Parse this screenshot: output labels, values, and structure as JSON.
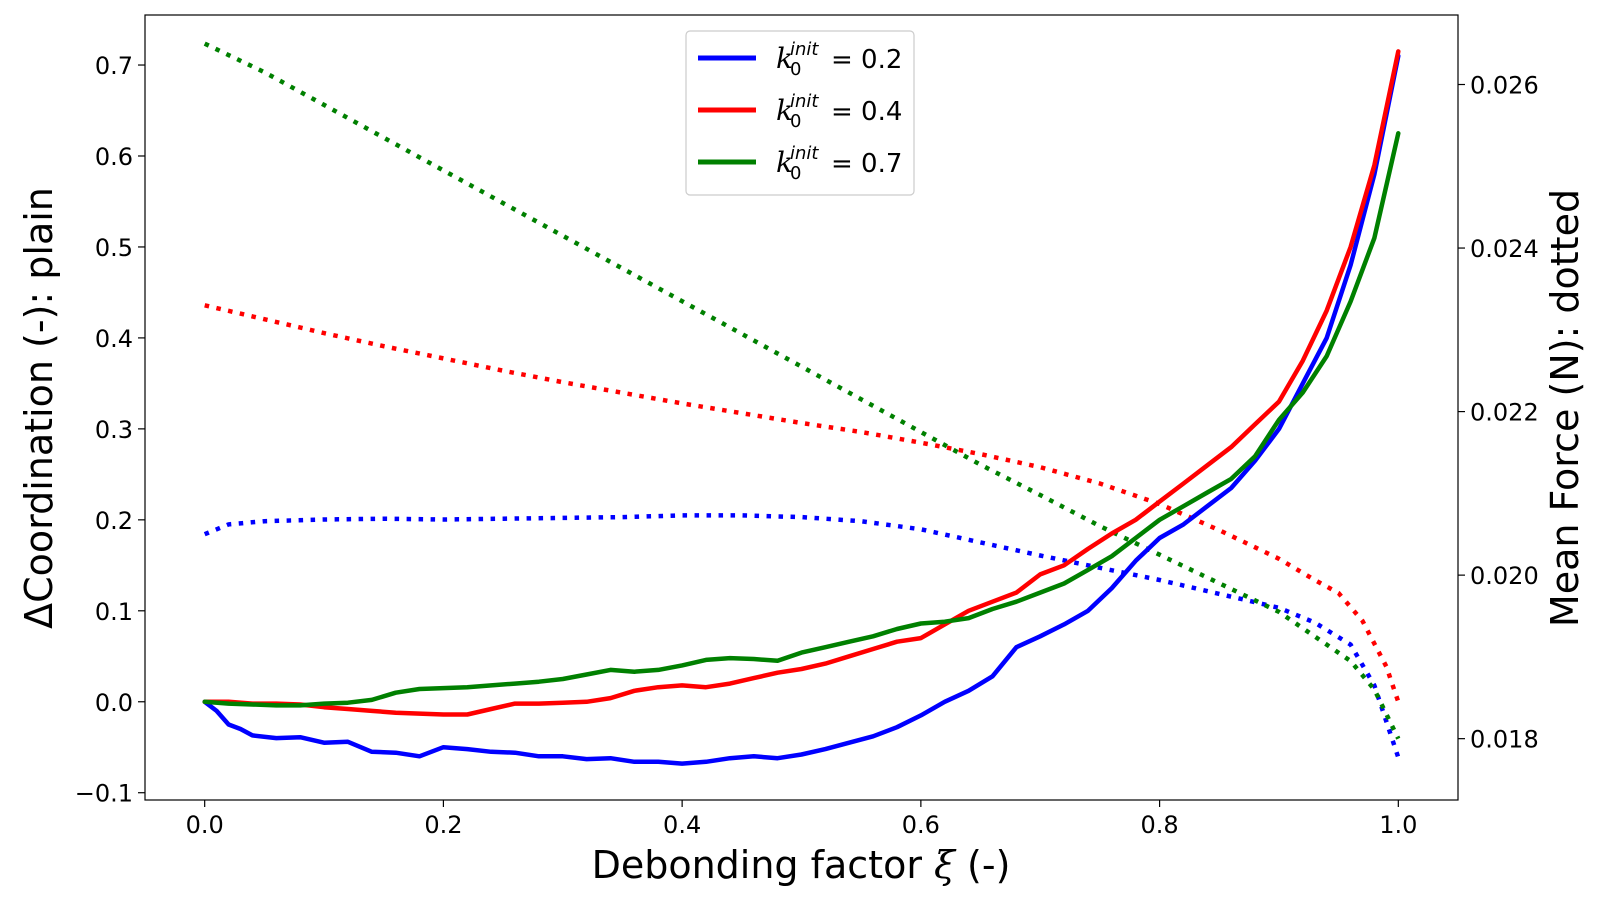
{
  "chart_data": {
    "type": "line",
    "xlabel_prefix": "Debonding factor ",
    "xlabel_symbol": "ξ",
    "xlabel_suffix": " (-)",
    "ylabel_prefix": "Δ",
    "ylabel": "Coordination (-): plain",
    "y2label": "Mean Force (N): dotted",
    "xlim": [
      -0.05,
      1.05
    ],
    "ylim": [
      -0.108,
      0.755
    ],
    "y2lim": [
      0.01725,
      0.02685
    ],
    "x_ticks": [
      "0.0",
      "0.2",
      "0.4",
      "0.6",
      "0.8",
      "1.0"
    ],
    "x_tick_values": [
      0.0,
      0.2,
      0.4,
      0.6,
      0.8,
      1.0
    ],
    "y_ticks": [
      "−0.1",
      "0.0",
      "0.1",
      "0.2",
      "0.3",
      "0.4",
      "0.5",
      "0.6",
      "0.7"
    ],
    "y_tick_values": [
      -0.1,
      0.0,
      0.1,
      0.2,
      0.3,
      0.4,
      0.5,
      0.6,
      0.7
    ],
    "y2_ticks": [
      "0.018",
      "0.020",
      "0.022",
      "0.024",
      "0.026"
    ],
    "y2_tick_values": [
      0.018,
      0.02,
      0.022,
      0.024,
      0.026
    ],
    "legend_position": "upper-center",
    "series": [
      {
        "name": "k0init=0.2",
        "legend_k": "k",
        "legend_sub": "0",
        "legend_sup": "init",
        "legend_value": "= 0.2",
        "color": "#0000ff",
        "coordination": {
          "x": [
            0.0,
            0.01,
            0.02,
            0.03,
            0.04,
            0.06,
            0.08,
            0.1,
            0.12,
            0.14,
            0.16,
            0.18,
            0.2,
            0.22,
            0.24,
            0.26,
            0.28,
            0.3,
            0.32,
            0.34,
            0.36,
            0.38,
            0.4,
            0.42,
            0.44,
            0.46,
            0.48,
            0.5,
            0.52,
            0.54,
            0.56,
            0.58,
            0.6,
            0.62,
            0.64,
            0.66,
            0.68,
            0.7,
            0.72,
            0.74,
            0.76,
            0.78,
            0.8,
            0.82,
            0.84,
            0.86,
            0.88,
            0.9,
            0.92,
            0.94,
            0.96,
            0.98,
            1.0
          ],
          "y": [
            0.0,
            -0.01,
            -0.025,
            -0.03,
            -0.037,
            -0.04,
            -0.039,
            -0.045,
            -0.044,
            -0.055,
            -0.056,
            -0.06,
            -0.05,
            -0.052,
            -0.055,
            -0.056,
            -0.06,
            -0.06,
            -0.063,
            -0.062,
            -0.066,
            -0.066,
            -0.068,
            -0.066,
            -0.062,
            -0.06,
            -0.062,
            -0.058,
            -0.052,
            -0.045,
            -0.038,
            -0.028,
            -0.015,
            0.0,
            0.012,
            0.028,
            0.06,
            0.072,
            0.085,
            0.1,
            0.125,
            0.155,
            0.18,
            0.195,
            0.215,
            0.235,
            0.265,
            0.3,
            0.35,
            0.4,
            0.48,
            0.58,
            0.71
          ]
        },
        "force": {
          "x": [
            0.0,
            0.02,
            0.05,
            0.1,
            0.15,
            0.2,
            0.25,
            0.3,
            0.35,
            0.4,
            0.45,
            0.5,
            0.55,
            0.6,
            0.65,
            0.7,
            0.75,
            0.8,
            0.85,
            0.9,
            0.93,
            0.96,
            0.98,
            1.0
          ],
          "y": [
            0.0205,
            0.02062,
            0.02066,
            0.02068,
            0.02069,
            0.02068,
            0.02069,
            0.0207,
            0.02071,
            0.02073,
            0.02073,
            0.02071,
            0.02066,
            0.02056,
            0.0204,
            0.02024,
            0.02009,
            0.01994,
            0.01977,
            0.0196,
            0.01942,
            0.01915,
            0.01865,
            0.01777
          ]
        }
      },
      {
        "name": "k0init=0.4",
        "legend_k": "k",
        "legend_sub": "0",
        "legend_sup": "init",
        "legend_value": "= 0.4",
        "color": "#ff0000",
        "coordination": {
          "x": [
            0.0,
            0.02,
            0.04,
            0.06,
            0.08,
            0.1,
            0.12,
            0.14,
            0.16,
            0.18,
            0.2,
            0.22,
            0.24,
            0.26,
            0.28,
            0.3,
            0.32,
            0.34,
            0.36,
            0.38,
            0.4,
            0.42,
            0.44,
            0.46,
            0.48,
            0.5,
            0.52,
            0.54,
            0.56,
            0.58,
            0.6,
            0.62,
            0.64,
            0.66,
            0.68,
            0.7,
            0.72,
            0.74,
            0.76,
            0.78,
            0.8,
            0.82,
            0.84,
            0.86,
            0.88,
            0.9,
            0.92,
            0.94,
            0.96,
            0.98,
            1.0
          ],
          "y": [
            0.0,
            0.0,
            -0.002,
            -0.002,
            -0.003,
            -0.006,
            -0.008,
            -0.01,
            -0.012,
            -0.013,
            -0.014,
            -0.014,
            -0.008,
            -0.002,
            -0.002,
            -0.001,
            0.0,
            0.004,
            0.012,
            0.016,
            0.018,
            0.016,
            0.02,
            0.026,
            0.032,
            0.036,
            0.042,
            0.05,
            0.058,
            0.066,
            0.07,
            0.085,
            0.1,
            0.11,
            0.12,
            0.14,
            0.15,
            0.168,
            0.185,
            0.2,
            0.22,
            0.24,
            0.26,
            0.28,
            0.305,
            0.33,
            0.375,
            0.43,
            0.5,
            0.59,
            0.715
          ]
        },
        "force": {
          "x": [
            0.0,
            0.05,
            0.1,
            0.15,
            0.2,
            0.25,
            0.3,
            0.35,
            0.4,
            0.45,
            0.5,
            0.55,
            0.6,
            0.65,
            0.7,
            0.75,
            0.8,
            0.85,
            0.9,
            0.93,
            0.95,
            0.97,
            0.99,
            1.0
          ],
          "y": [
            0.0233,
            0.02313,
            0.02296,
            0.0228,
            0.02265,
            0.0225,
            0.02236,
            0.02223,
            0.0221,
            0.02198,
            0.02186,
            0.02175,
            0.02162,
            0.02148,
            0.02132,
            0.02112,
            0.02087,
            0.02055,
            0.0202,
            0.01994,
            0.01978,
            0.01944,
            0.01888,
            0.01845
          ]
        }
      },
      {
        "name": "k0init=0.7",
        "legend_k": "k",
        "legend_sub": "0",
        "legend_sup": "init",
        "legend_value": "= 0.7",
        "color": "#008000",
        "coordination": {
          "x": [
            0.0,
            0.02,
            0.04,
            0.06,
            0.08,
            0.1,
            0.12,
            0.14,
            0.16,
            0.18,
            0.2,
            0.22,
            0.24,
            0.26,
            0.28,
            0.3,
            0.32,
            0.34,
            0.36,
            0.38,
            0.4,
            0.42,
            0.44,
            0.46,
            0.48,
            0.5,
            0.52,
            0.54,
            0.56,
            0.58,
            0.6,
            0.62,
            0.64,
            0.66,
            0.68,
            0.7,
            0.72,
            0.74,
            0.76,
            0.78,
            0.8,
            0.82,
            0.84,
            0.86,
            0.88,
            0.9,
            0.92,
            0.94,
            0.96,
            0.98,
            1.0
          ],
          "y": [
            0.0,
            -0.002,
            -0.003,
            -0.004,
            -0.004,
            -0.002,
            -0.001,
            0.002,
            0.01,
            0.014,
            0.015,
            0.016,
            0.018,
            0.02,
            0.022,
            0.025,
            0.03,
            0.035,
            0.033,
            0.035,
            0.04,
            0.046,
            0.048,
            0.047,
            0.045,
            0.054,
            0.06,
            0.066,
            0.072,
            0.08,
            0.086,
            0.088,
            0.092,
            0.102,
            0.11,
            0.12,
            0.13,
            0.145,
            0.16,
            0.18,
            0.2,
            0.215,
            0.23,
            0.245,
            0.27,
            0.31,
            0.34,
            0.38,
            0.44,
            0.51,
            0.625
          ]
        },
        "force": {
          "x": [
            0.0,
            0.05,
            0.1,
            0.15,
            0.2,
            0.25,
            0.3,
            0.35,
            0.4,
            0.45,
            0.5,
            0.55,
            0.6,
            0.65,
            0.7,
            0.75,
            0.8,
            0.85,
            0.9,
            0.93,
            0.96,
            0.98,
            1.0
          ],
          "y": [
            0.0265,
            0.02615,
            0.02575,
            0.02535,
            0.02495,
            0.02455,
            0.02415,
            0.02375,
            0.02335,
            0.02295,
            0.02255,
            0.02215,
            0.02175,
            0.02135,
            0.02098,
            0.0206,
            0.02025,
            0.0199,
            0.01955,
            0.01925,
            0.01895,
            0.0186,
            0.018
          ]
        }
      }
    ]
  }
}
